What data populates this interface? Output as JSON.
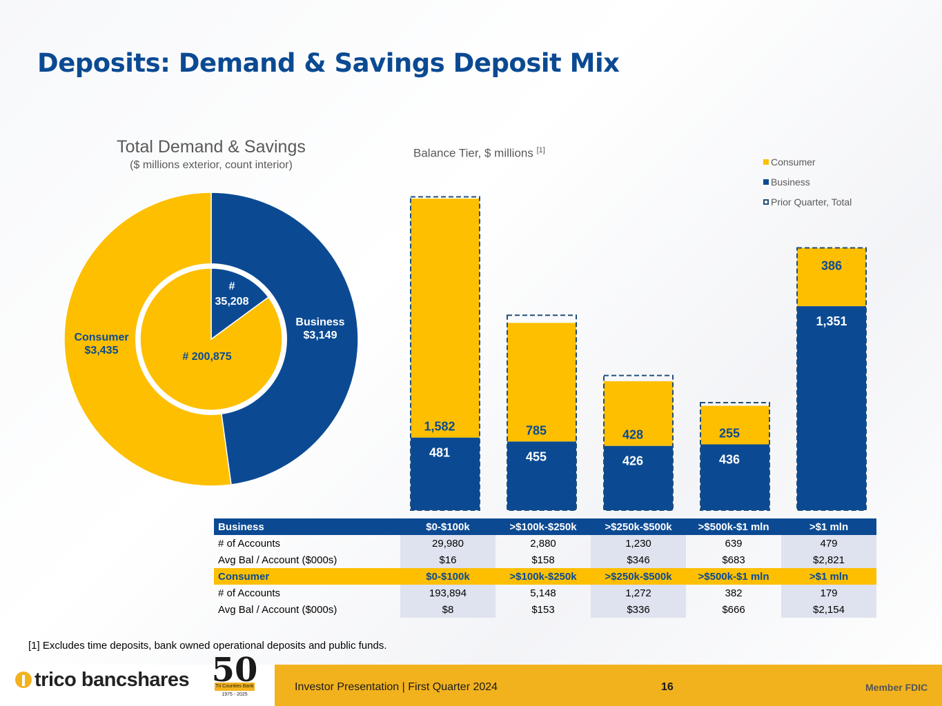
{
  "page": {
    "title": "Deposits: Demand & Savings Deposit Mix",
    "footnote": "[1] Excludes time deposits, bank owned operational deposits and public funds."
  },
  "colors": {
    "consumer": "#fdbf00",
    "business": "#0b4a93",
    "prior": "#1f4e79"
  },
  "chart_data": [
    {
      "type": "pie",
      "title": "Total Demand & Savings",
      "subtitle": "($ millions exterior, count interior)",
      "outer": {
        "slices": [
          {
            "name": "Business",
            "value": 3149,
            "label_line1": "Business",
            "label_line2": "$3,149"
          },
          {
            "name": "Consumer",
            "value": 3435,
            "label_line1": "Consumer",
            "label_line2": "$3,435"
          }
        ]
      },
      "inner": {
        "slices": [
          {
            "name": "Business",
            "value": 35208,
            "label_line1": "#",
            "label_line2": "35,208"
          },
          {
            "name": "Consumer",
            "value": 200875,
            "label_line1": "# 200,875",
            "label_line2": ""
          }
        ]
      }
    },
    {
      "type": "bar",
      "stacked": true,
      "title": "Balance Tier, $ millions",
      "title_sup": "[1]",
      "categories": [
        "$0-$100k",
        ">$100k-$250k",
        ">$250k-$500k",
        ">$500k-$1 mln",
        ">$1 mln"
      ],
      "series": [
        {
          "name": "Business",
          "values": [
            481,
            455,
            426,
            436,
            1351
          ],
          "labels": [
            "481",
            "455",
            "426",
            "436",
            "1,351"
          ]
        },
        {
          "name": "Consumer",
          "values": [
            1582,
            785,
            428,
            255,
            386
          ],
          "labels": [
            "1,582",
            "785",
            "428",
            "255",
            "386"
          ]
        }
      ],
      "prior_quarter_total": [
        2075,
        1291,
        892,
        712,
        1737
      ],
      "legend": [
        "Consumer",
        "Business",
        "Prior Quarter, Total"
      ],
      "legend_position": "top-right",
      "ylim": [
        0,
        2100
      ],
      "grid": false
    },
    {
      "type": "table",
      "business": {
        "header": [
          "Business",
          "$0-$100k",
          ">$100k-$250k",
          ">$250k-$500k",
          ">$500k-$1 mln",
          ">$1 mln"
        ],
        "rows": [
          [
            "# of Accounts",
            "29,980",
            "2,880",
            "1,230",
            "639",
            "479"
          ],
          [
            "Avg Bal / Account ($000s)",
            "$16",
            "$158",
            "$346",
            "$683",
            "$2,821"
          ]
        ]
      },
      "consumer": {
        "header": [
          "Consumer",
          "$0-$100k",
          ">$100k-$250k",
          ">$250k-$500k",
          ">$500k-$1 mln",
          ">$1 mln"
        ],
        "rows": [
          [
            "# of Accounts",
            "193,894",
            "5,148",
            "1,272",
            "382",
            "179"
          ],
          [
            "Avg Bal / Account ($000s)",
            "$8",
            "$153",
            "$336",
            "$666",
            "$2,154"
          ]
        ]
      }
    }
  ],
  "footer": {
    "logo_text": "trico bancshares",
    "badge_number": "50",
    "badge_ribbon": "Tri Counties Bank",
    "badge_years": "1975 - 2025",
    "presentation": "Investor Presentation  |  First Quarter 2024",
    "page_number": "16",
    "member": "Member FDIC"
  }
}
